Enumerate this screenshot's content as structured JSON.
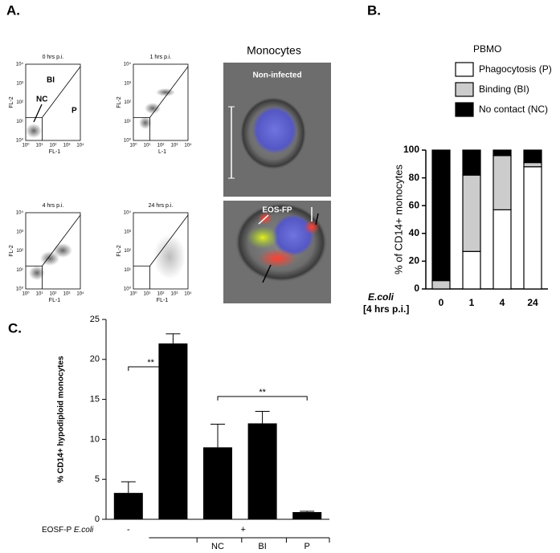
{
  "panel_a": {
    "label": "A.",
    "plots": [
      {
        "title": "0 hrs p.i.",
        "xlabel": "FL-1",
        "ylabel": "FL-2"
      },
      {
        "title": "1 hrs p.i.",
        "xlabel": "L-1",
        "ylabel": "FL-2"
      },
      {
        "title": "4 hrs p.i.",
        "xlabel": "FL-1",
        "ylabel": "FL-2"
      },
      {
        "title": "24 hrs p.i.",
        "xlabel": "FL-1",
        "ylabel": "FL-2"
      }
    ],
    "ticks": [
      "10⁰",
      "10¹",
      "10²",
      "10³",
      "10⁴"
    ],
    "gates": [
      "BI",
      "NC",
      "P"
    ],
    "images": {
      "title": "Monocytes",
      "panels": [
        "Non-infected",
        "EOS-FP"
      ]
    }
  },
  "chart_data": [
    {
      "type": "stacked_bar",
      "panel_label": "B.",
      "legend_title": "PBMO",
      "ylabel": "% of CD14+ monocytes",
      "xlabel": "E.coli",
      "xlabel_note": "[4 hrs p.i.]",
      "categories": [
        "0",
        "1",
        "4",
        "24"
      ],
      "series": [
        {
          "name": "Phagocytosis (P)",
          "color": "#ffffff",
          "values": [
            0,
            27,
            57,
            88
          ]
        },
        {
          "name": "Binding (BI)",
          "color": "#cccccc",
          "values": [
            6,
            55,
            39,
            3
          ]
        },
        {
          "name": "No contact (NC)",
          "color": "#000000",
          "values": [
            94,
            18,
            4,
            9
          ]
        }
      ],
      "ylim": [
        0,
        100
      ],
      "yticks": [
        0,
        20,
        40,
        60,
        80,
        100
      ]
    },
    {
      "type": "bar",
      "panel_label": "C.",
      "ylabel": "% CD14+ hypodiploid monocytes",
      "row_label": "EOSF-P",
      "row_label_italic": "E.coli",
      "categories": [
        "-",
        null,
        "NC",
        "BI",
        "P"
      ],
      "group_label": "+",
      "values": [
        3.3,
        22,
        9,
        12,
        0.9
      ],
      "errors": [
        1.4,
        1.2,
        2.9,
        1.5,
        0.1
      ],
      "color": "#000000",
      "annotations": [
        "**",
        "**"
      ],
      "ylim": [
        0,
        25
      ],
      "yticks": [
        0,
        5,
        10,
        15,
        20,
        25
      ]
    }
  ]
}
